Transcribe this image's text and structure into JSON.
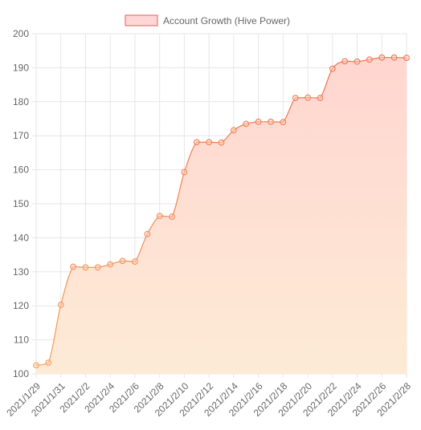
{
  "chart_data": {
    "type": "area",
    "legend": {
      "label": "Account Growth (Hive Power)",
      "position": "top-center"
    },
    "series": [
      {
        "name": "Account Growth (Hive Power)",
        "values": [
          102.5,
          103.3,
          120.3,
          131.5,
          131.3,
          131.3,
          132.2,
          133.2,
          133.0,
          141.1,
          146.4,
          146.2,
          159.3,
          168.1,
          168.1,
          168.0,
          171.6,
          173.5,
          174.1,
          174.1,
          174.0,
          181.1,
          181.2,
          181.1,
          189.7,
          191.9,
          191.8,
          192.4,
          193.0,
          193.0,
          192.9
        ]
      }
    ],
    "x": [
      "2021/1/29",
      "2021/1/30",
      "2021/1/31",
      "2021/2/1",
      "2021/2/2",
      "2021/2/3",
      "2021/2/4",
      "2021/2/5",
      "2021/2/6",
      "2021/2/7",
      "2021/2/8",
      "2021/2/9",
      "2021/2/10",
      "2021/2/11",
      "2021/2/12",
      "2021/2/13",
      "2021/2/14",
      "2021/2/15",
      "2021/2/16",
      "2021/2/17",
      "2021/2/18",
      "2021/2/19",
      "2021/2/20",
      "2021/2/21",
      "2021/2/22",
      "2021/2/23",
      "2021/2/24",
      "2021/2/25",
      "2021/2/26",
      "2021/2/27",
      "2021/2/28"
    ],
    "x_tick_labels": [
      "2021/1/29",
      "2021/1/31",
      "2021/2/2",
      "2021/2/4",
      "2021/2/6",
      "2021/2/8",
      "2021/2/10",
      "2021/2/12",
      "2021/2/14",
      "2021/2/16",
      "2021/2/18",
      "2021/2/20",
      "2021/2/22",
      "2021/2/24",
      "2021/2/26",
      "2021/2/28"
    ],
    "y_ticks": [
      "100",
      "110",
      "120",
      "130",
      "140",
      "150",
      "160",
      "170",
      "180",
      "190",
      "200"
    ],
    "ylim": [
      100,
      200
    ],
    "grid": true,
    "colors": {
      "line_start": "#f5a25d",
      "line_end": "#ee6f4f",
      "fill_top": "#ffd6d0",
      "fill_bottom": "#fdebd6",
      "legend_fill": "#ffd6d6",
      "legend_border": "#ee5a5a",
      "grid": "#e6e6e6",
      "text": "#666666"
    }
  }
}
